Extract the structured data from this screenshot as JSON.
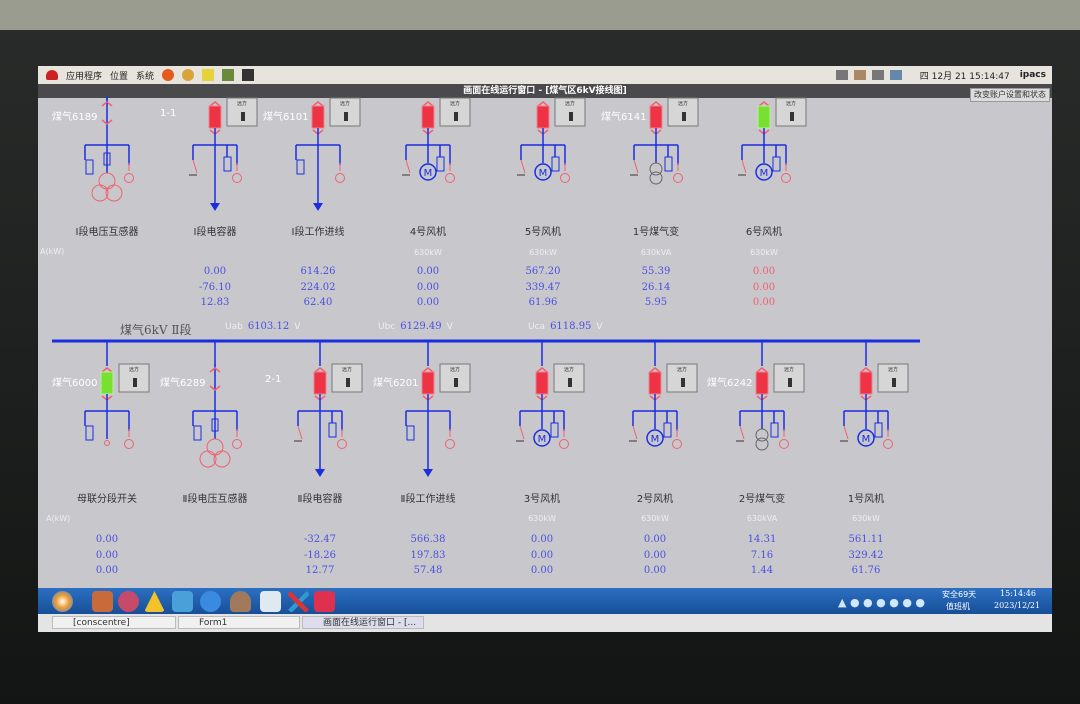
{
  "top_panel": {
    "menus": [
      "应用程序",
      "位置",
      "系统"
    ],
    "clock": "四 12月 21 15:14:47",
    "user": "ipacs"
  },
  "window": {
    "title": "画面在线运行窗口 - [煤气区6kV接线图]",
    "account_button": "改变账户设置和状态"
  },
  "remote_label": "远方",
  "power_label": "A(kW)",
  "bus": {
    "name": "煤气6kV Ⅱ段",
    "uab_label": "Uab",
    "uab": "6103.12",
    "ubc_label": "Ubc",
    "ubc": "6129.49",
    "uca_label": "Uca",
    "uca": "6118.95",
    "unit": "V",
    "color": "#1a2ee0"
  },
  "colors": {
    "closed": "#ee3344",
    "open": "#77e030",
    "line": "#1a2ee0",
    "arrow": "#f06070",
    "value": "#4a50e0",
    "alarm": "#f06070"
  },
  "top_bays": [
    {
      "name": "Ⅰ段电压互感器",
      "tag": "煤气6189",
      "type": "pt",
      "breaker": "none",
      "rating": "",
      "values": []
    },
    {
      "name": "Ⅰ段电容器",
      "tag": "1-1",
      "type": "cap",
      "breaker": "closed",
      "rating": "",
      "values": [
        "0.00",
        "-76.10",
        "12.83"
      ]
    },
    {
      "name": "Ⅰ段工作进线",
      "tag": "煤气6101",
      "type": "feeder",
      "breaker": "closed",
      "rating": "",
      "values": [
        "614.26",
        "224.02",
        "62.40"
      ]
    },
    {
      "name": "4号风机",
      "tag": "",
      "type": "motor",
      "breaker": "closed",
      "rating": "630kW",
      "values": [
        "0.00",
        "0.00",
        "0.00"
      ]
    },
    {
      "name": "5号风机",
      "tag": "",
      "type": "motor",
      "breaker": "closed",
      "rating": "630kW",
      "values": [
        "567.20",
        "339.47",
        "61.96"
      ]
    },
    {
      "name": "1号煤气变",
      "tag": "煤气6141",
      "type": "xfmr",
      "breaker": "closed",
      "rating": "630kVA",
      "values": [
        "55.39",
        "26.14",
        "5.95"
      ]
    },
    {
      "name": "6号风机",
      "tag": "",
      "type": "motor",
      "breaker": "open",
      "rating": "630kW",
      "values": [
        "0.00",
        "0.00",
        "0.00"
      ],
      "alarm": true
    }
  ],
  "bottom_bays": [
    {
      "name": "母联分段开关",
      "tag": "煤气6000",
      "type": "tie",
      "breaker": "open",
      "rating": "",
      "values": [
        "0.00",
        "0.00",
        "0.00"
      ]
    },
    {
      "name": "Ⅱ段电压互感器",
      "tag": "煤气6289",
      "type": "pt",
      "breaker": "none",
      "rating": "",
      "values": []
    },
    {
      "name": "Ⅱ段电容器",
      "tag": "2-1",
      "type": "cap",
      "breaker": "closed",
      "rating": "",
      "values": [
        "-32.47",
        "-18.26",
        "12.77"
      ]
    },
    {
      "name": "Ⅱ段工作进线",
      "tag": "煤气6201",
      "type": "feeder",
      "breaker": "closed",
      "rating": "",
      "values": [
        "566.38",
        "197.83",
        "57.48"
      ]
    },
    {
      "name": "3号风机",
      "tag": "",
      "type": "motor",
      "breaker": "closed",
      "rating": "630kW",
      "values": [
        "0.00",
        "0.00",
        "0.00"
      ]
    },
    {
      "name": "2号风机",
      "tag": "",
      "type": "motor",
      "breaker": "closed",
      "rating": "630kW",
      "values": [
        "0.00",
        "0.00",
        "0.00"
      ]
    },
    {
      "name": "2号煤气变",
      "tag": "煤气6242",
      "type": "xfmr",
      "breaker": "closed",
      "rating": "630kVA",
      "values": [
        "14.31",
        "7.16",
        "1.44"
      ]
    },
    {
      "name": "1号风机",
      "tag": "",
      "type": "motor",
      "breaker": "closed",
      "rating": "630kW",
      "values": [
        "561.11",
        "329.42",
        "61.76"
      ]
    }
  ],
  "taskbar": {
    "status": "安全69天",
    "role": "值班机",
    "time": "15:14:46",
    "date": "2023/12/21"
  },
  "tasks": [
    "[conscentre]",
    "Form1",
    "画面在线运行窗口 - [..."
  ]
}
